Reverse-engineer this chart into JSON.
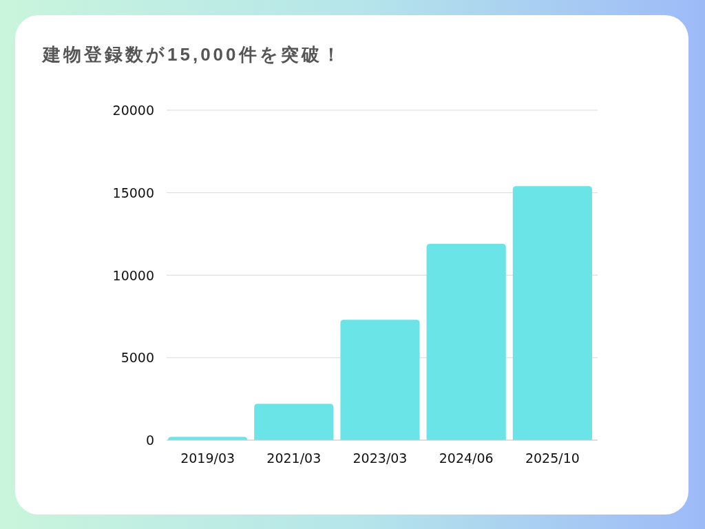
{
  "chart_data": {
    "type": "bar",
    "title": "建物登録数が15,000件を突破！",
    "categories": [
      "2019/03",
      "2021/03",
      "2023/03",
      "2024/06",
      "2025/10"
    ],
    "values": [
      200,
      2200,
      7300,
      11900,
      15400
    ],
    "color": "#6ae4e6",
    "ylim": [
      0,
      20000
    ],
    "yticks": [
      0,
      5000,
      10000,
      15000,
      20000
    ],
    "grid": "y"
  }
}
